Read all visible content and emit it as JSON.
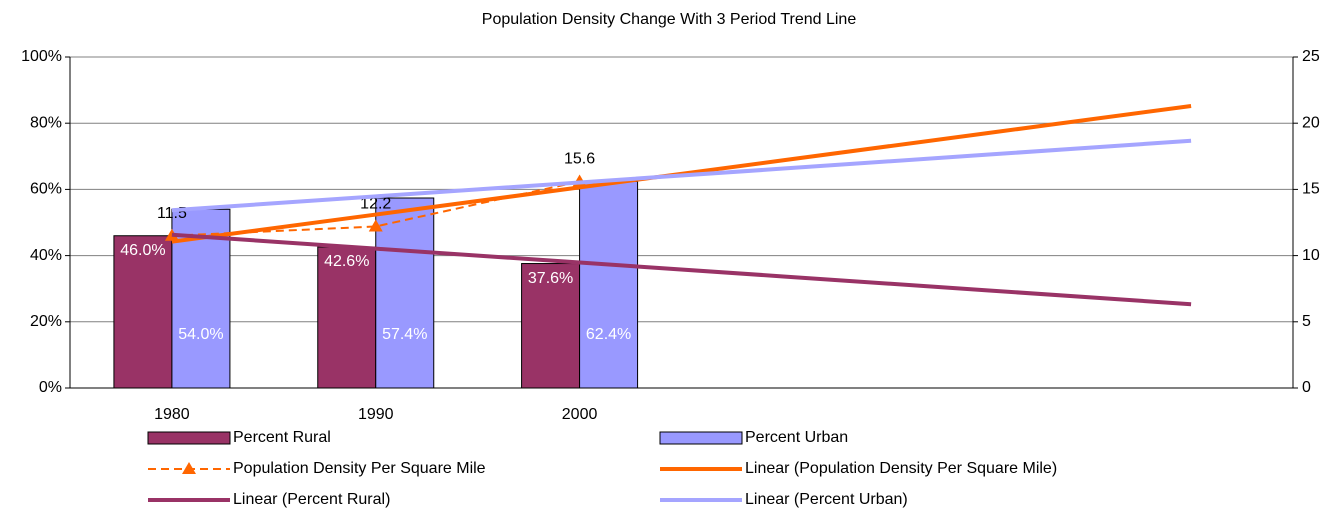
{
  "chart_data": {
    "type": "bar",
    "title": "Population Density Change With 3 Period Trend Line",
    "categories": [
      "1980",
      "1990",
      "2000",
      null,
      null,
      null
    ],
    "ylim": [
      0,
      100
    ],
    "yticks": [
      {
        "value": 0,
        "label": "0%"
      },
      {
        "value": 20,
        "label": "20%"
      },
      {
        "value": 40,
        "label": "40%"
      },
      {
        "value": 60,
        "label": "60%"
      },
      {
        "value": 80,
        "label": "80%"
      },
      {
        "value": 100,
        "label": "100%"
      }
    ],
    "y2lim": [
      0,
      25
    ],
    "y2ticks": [
      0,
      5,
      10,
      15,
      20,
      25
    ],
    "grid": true,
    "legend": "bottom",
    "series": [
      {
        "name": "Percent Rural",
        "type": "bar",
        "color": "#993366",
        "values": [
          46.0,
          42.6,
          37.6,
          null,
          null,
          null
        ],
        "value_labels": [
          "46.0%",
          "42.6%",
          "37.6%",
          null,
          null,
          null
        ]
      },
      {
        "name": "Percent Urban",
        "type": "bar",
        "color": "#9999ff",
        "values": [
          54.0,
          57.4,
          62.4,
          null,
          null,
          null
        ],
        "value_labels": [
          "54.0%",
          "57.4%",
          "62.4%",
          null,
          null,
          null
        ]
      },
      {
        "name": "Population Density Per Square Mile",
        "type": "line",
        "dashed": true,
        "marker": "triangle",
        "axis": "y2",
        "color": "#ff6600",
        "values": [
          11.5,
          12.2,
          15.6,
          null,
          null,
          null
        ]
      },
      {
        "name": "Linear (Population Density Per Square Mile)",
        "type": "line",
        "axis": "y2",
        "color": "#ff6600",
        "values": [
          11.05,
          13.1,
          15.15,
          17.2,
          19.25,
          21.3
        ]
      },
      {
        "name": "Linear (Percent Rural)",
        "type": "line",
        "color": "#993366",
        "values": [
          46.3,
          42.1,
          37.9,
          33.7,
          29.5,
          25.3
        ]
      },
      {
        "name": "Linear (Percent Urban)",
        "type": "line",
        "color": "#a5a5ff",
        "values": [
          53.7,
          57.9,
          62.1,
          66.3,
          70.5,
          74.7
        ]
      }
    ]
  }
}
